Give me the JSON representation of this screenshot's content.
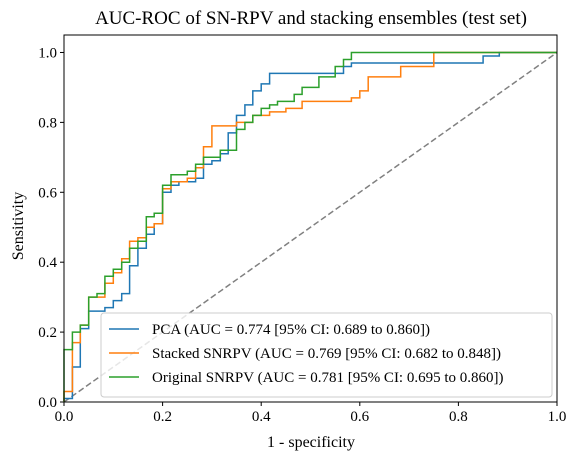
{
  "chart_data": {
    "type": "line",
    "title": "AUC-ROC of SN-RPV and stacking ensembles (test set)",
    "xlabel": "1 - specificity",
    "ylabel": "Sensitivity",
    "xlim": [
      0.0,
      1.0
    ],
    "ylim": [
      0.0,
      1.05
    ],
    "xticks": [
      "0.0",
      "0.2",
      "0.4",
      "0.6",
      "0.8",
      "1.0"
    ],
    "yticks": [
      "0.0",
      "0.2",
      "0.4",
      "0.6",
      "0.8",
      "1.0"
    ],
    "grid": false,
    "legend_position": "lower-right",
    "reference_line": {
      "style": "dashed",
      "color": "#808080",
      "x": [
        0,
        1
      ],
      "y": [
        0,
        1
      ]
    },
    "series": [
      {
        "name": "PCA (AUC = 0.774 [95% CI: 0.689 to 0.860])",
        "color": "#1f77b4",
        "x": [
          0.0,
          0.0,
          0.017,
          0.017,
          0.033,
          0.033,
          0.05,
          0.05,
          0.067,
          0.067,
          0.083,
          0.083,
          0.1,
          0.1,
          0.117,
          0.117,
          0.133,
          0.133,
          0.15,
          0.15,
          0.167,
          0.167,
          0.183,
          0.183,
          0.2,
          0.2,
          0.217,
          0.217,
          0.233,
          0.233,
          0.25,
          0.25,
          0.267,
          0.267,
          0.283,
          0.283,
          0.3,
          0.3,
          0.317,
          0.317,
          0.333,
          0.333,
          0.35,
          0.35,
          0.367,
          0.367,
          0.383,
          0.383,
          0.4,
          0.4,
          0.417,
          0.417,
          0.433,
          0.433,
          0.567,
          0.567,
          0.583,
          0.583,
          0.6,
          0.6,
          0.85,
          0.85,
          0.883,
          0.883,
          1.0
        ],
        "y": [
          0.0,
          0.01,
          0.01,
          0.1,
          0.1,
          0.21,
          0.21,
          0.26,
          0.26,
          0.26,
          0.26,
          0.27,
          0.27,
          0.29,
          0.29,
          0.31,
          0.31,
          0.39,
          0.39,
          0.44,
          0.44,
          0.48,
          0.48,
          0.51,
          0.51,
          0.6,
          0.6,
          0.62,
          0.62,
          0.63,
          0.63,
          0.63,
          0.63,
          0.64,
          0.64,
          0.68,
          0.68,
          0.69,
          0.69,
          0.71,
          0.71,
          0.77,
          0.77,
          0.82,
          0.82,
          0.85,
          0.85,
          0.89,
          0.89,
          0.91,
          0.91,
          0.94,
          0.94,
          0.94,
          0.94,
          0.96,
          0.96,
          0.97,
          0.97,
          0.97,
          0.97,
          0.99,
          0.99,
          1.0,
          1.0
        ]
      },
      {
        "name": "Stacked SNRPV (AUC = 0.769 [95% CI: 0.682 to 0.848])",
        "color": "#ff7f0e",
        "x": [
          0.0,
          0.0,
          0.017,
          0.017,
          0.033,
          0.033,
          0.05,
          0.05,
          0.083,
          0.083,
          0.1,
          0.1,
          0.117,
          0.117,
          0.133,
          0.133,
          0.15,
          0.15,
          0.167,
          0.167,
          0.183,
          0.183,
          0.2,
          0.2,
          0.217,
          0.217,
          0.25,
          0.25,
          0.267,
          0.267,
          0.283,
          0.283,
          0.3,
          0.3,
          0.35,
          0.35,
          0.383,
          0.383,
          0.417,
          0.417,
          0.45,
          0.45,
          0.483,
          0.483,
          0.583,
          0.583,
          0.6,
          0.6,
          0.617,
          0.617,
          0.633,
          0.633,
          0.683,
          0.683,
          0.733,
          0.733,
          0.75,
          0.75,
          1.0
        ],
        "y": [
          0.0,
          0.03,
          0.03,
          0.17,
          0.17,
          0.22,
          0.22,
          0.3,
          0.3,
          0.34,
          0.34,
          0.37,
          0.37,
          0.41,
          0.41,
          0.46,
          0.46,
          0.47,
          0.47,
          0.5,
          0.5,
          0.51,
          0.51,
          0.61,
          0.61,
          0.63,
          0.63,
          0.64,
          0.64,
          0.67,
          0.67,
          0.73,
          0.73,
          0.79,
          0.79,
          0.8,
          0.8,
          0.82,
          0.82,
          0.83,
          0.83,
          0.84,
          0.84,
          0.86,
          0.86,
          0.87,
          0.87,
          0.89,
          0.89,
          0.93,
          0.93,
          0.93,
          0.93,
          0.96,
          0.96,
          0.96,
          0.96,
          1.0,
          1.0
        ]
      },
      {
        "name": "Original SNRPV (AUC = 0.781 [95% CI: 0.695 to 0.860])",
        "color": "#2ca02c",
        "x": [
          0.0,
          0.0,
          0.017,
          0.017,
          0.033,
          0.033,
          0.05,
          0.05,
          0.067,
          0.067,
          0.083,
          0.083,
          0.1,
          0.1,
          0.117,
          0.117,
          0.133,
          0.133,
          0.15,
          0.15,
          0.167,
          0.167,
          0.183,
          0.183,
          0.2,
          0.2,
          0.217,
          0.217,
          0.25,
          0.25,
          0.267,
          0.267,
          0.283,
          0.283,
          0.317,
          0.317,
          0.35,
          0.35,
          0.367,
          0.367,
          0.383,
          0.383,
          0.4,
          0.4,
          0.417,
          0.417,
          0.433,
          0.433,
          0.467,
          0.467,
          0.483,
          0.483,
          0.517,
          0.517,
          0.55,
          0.55,
          0.567,
          0.567,
          0.583,
          0.583,
          1.0
        ],
        "y": [
          0.0,
          0.15,
          0.15,
          0.2,
          0.2,
          0.22,
          0.22,
          0.3,
          0.3,
          0.31,
          0.31,
          0.36,
          0.36,
          0.38,
          0.38,
          0.4,
          0.4,
          0.44,
          0.44,
          0.46,
          0.46,
          0.53,
          0.53,
          0.54,
          0.54,
          0.62,
          0.62,
          0.65,
          0.65,
          0.66,
          0.66,
          0.68,
          0.68,
          0.7,
          0.7,
          0.72,
          0.72,
          0.78,
          0.78,
          0.8,
          0.8,
          0.82,
          0.82,
          0.84,
          0.84,
          0.85,
          0.85,
          0.86,
          0.86,
          0.88,
          0.88,
          0.9,
          0.9,
          0.93,
          0.93,
          0.96,
          0.96,
          0.98,
          0.98,
          1.0,
          1.0
        ]
      }
    ]
  }
}
